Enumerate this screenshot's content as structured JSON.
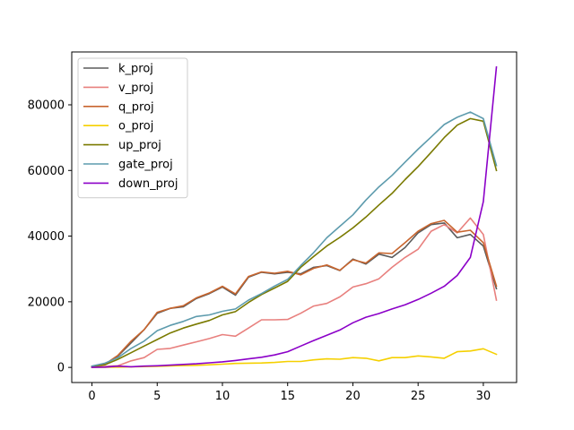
{
  "chart_data": {
    "type": "line",
    "title": "",
    "xlabel": "",
    "ylabel": "",
    "xlim": [
      -1.55,
      32.55
    ],
    "ylim": [
      -4600,
      96100
    ],
    "xticks": [
      0,
      5,
      10,
      15,
      20,
      25,
      30
    ],
    "yticks": [
      0,
      20000,
      40000,
      60000,
      80000
    ],
    "grid": false,
    "legend_position": "top-left",
    "x": [
      0,
      1,
      2,
      3,
      4,
      5,
      6,
      7,
      8,
      9,
      10,
      11,
      12,
      13,
      14,
      15,
      16,
      17,
      18,
      19,
      20,
      21,
      22,
      23,
      24,
      25,
      26,
      27,
      28,
      29,
      30,
      31
    ],
    "series": [
      {
        "name": "k_proj",
        "color": "#5b5b5b",
        "values": [
          200,
          1000,
          3500,
          7500,
          11500,
          16500,
          18000,
          18500,
          21000,
          22500,
          24500,
          22000,
          27500,
          29000,
          28500,
          29000,
          28500,
          30500,
          31000,
          29500,
          33000,
          31500,
          34500,
          33500,
          36500,
          41000,
          43500,
          44000,
          39500,
          40500,
          37000,
          24000
        ]
      },
      {
        "name": "v_proj",
        "color": "#e8807e",
        "values": [
          200,
          300,
          500,
          2000,
          3000,
          5500,
          5800,
          6800,
          7800,
          8800,
          10000,
          9500,
          12000,
          14500,
          14500,
          14600,
          16500,
          18700,
          19500,
          21500,
          24500,
          25500,
          27000,
          30500,
          33500,
          36000,
          41500,
          43500,
          41000,
          45500,
          40500,
          20500
        ]
      },
      {
        "name": "q_proj",
        "color": "#c8652e",
        "values": [
          300,
          1000,
          3700,
          8000,
          11500,
          16800,
          18000,
          18800,
          21200,
          22700,
          24700,
          22400,
          27700,
          29100,
          28700,
          29300,
          28200,
          30200,
          31200,
          29600,
          32800,
          31800,
          34900,
          34700,
          38000,
          41500,
          43800,
          44800,
          41200,
          41800,
          38000,
          24800
        ]
      },
      {
        "name": "o_proj",
        "color": "#f5d000",
        "values": [
          0,
          50,
          100,
          200,
          250,
          350,
          450,
          550,
          650,
          800,
          1000,
          1200,
          1300,
          1350,
          1500,
          1800,
          1800,
          2300,
          2600,
          2500,
          3000,
          2800,
          2000,
          3000,
          3000,
          3500,
          3200,
          2800,
          4800,
          5000,
          5700,
          4000
        ]
      },
      {
        "name": "up_proj",
        "color": "#7a7a00",
        "values": [
          300,
          800,
          2500,
          4500,
          6500,
          8500,
          10500,
          12000,
          13200,
          14300,
          16000,
          17000,
          19800,
          22200,
          24200,
          26200,
          30500,
          33800,
          37000,
          39600,
          42500,
          45800,
          49500,
          53000,
          57200,
          61200,
          65500,
          70000,
          73800,
          75800,
          75000,
          60000
        ]
      },
      {
        "name": "gate_proj",
        "color": "#5d9bad",
        "values": [
          400,
          1300,
          3000,
          5800,
          8000,
          11200,
          12800,
          14000,
          15500,
          16000,
          17100,
          17800,
          20500,
          22500,
          24800,
          26800,
          31000,
          35000,
          39500,
          43000,
          46500,
          51000,
          55000,
          58500,
          62500,
          66500,
          70200,
          74000,
          76200,
          77800,
          75800,
          61500
        ]
      },
      {
        "name": "down_proj",
        "color": "#8b00c8",
        "values": [
          0,
          100,
          400,
          200,
          400,
          500,
          700,
          900,
          1100,
          1400,
          1700,
          2100,
          2600,
          3100,
          3800,
          4800,
          6500,
          8200,
          9800,
          11400,
          13600,
          15300,
          16400,
          17800,
          19100,
          20700,
          22600,
          24700,
          28000,
          33500,
          50500,
          91500
        ]
      }
    ]
  }
}
